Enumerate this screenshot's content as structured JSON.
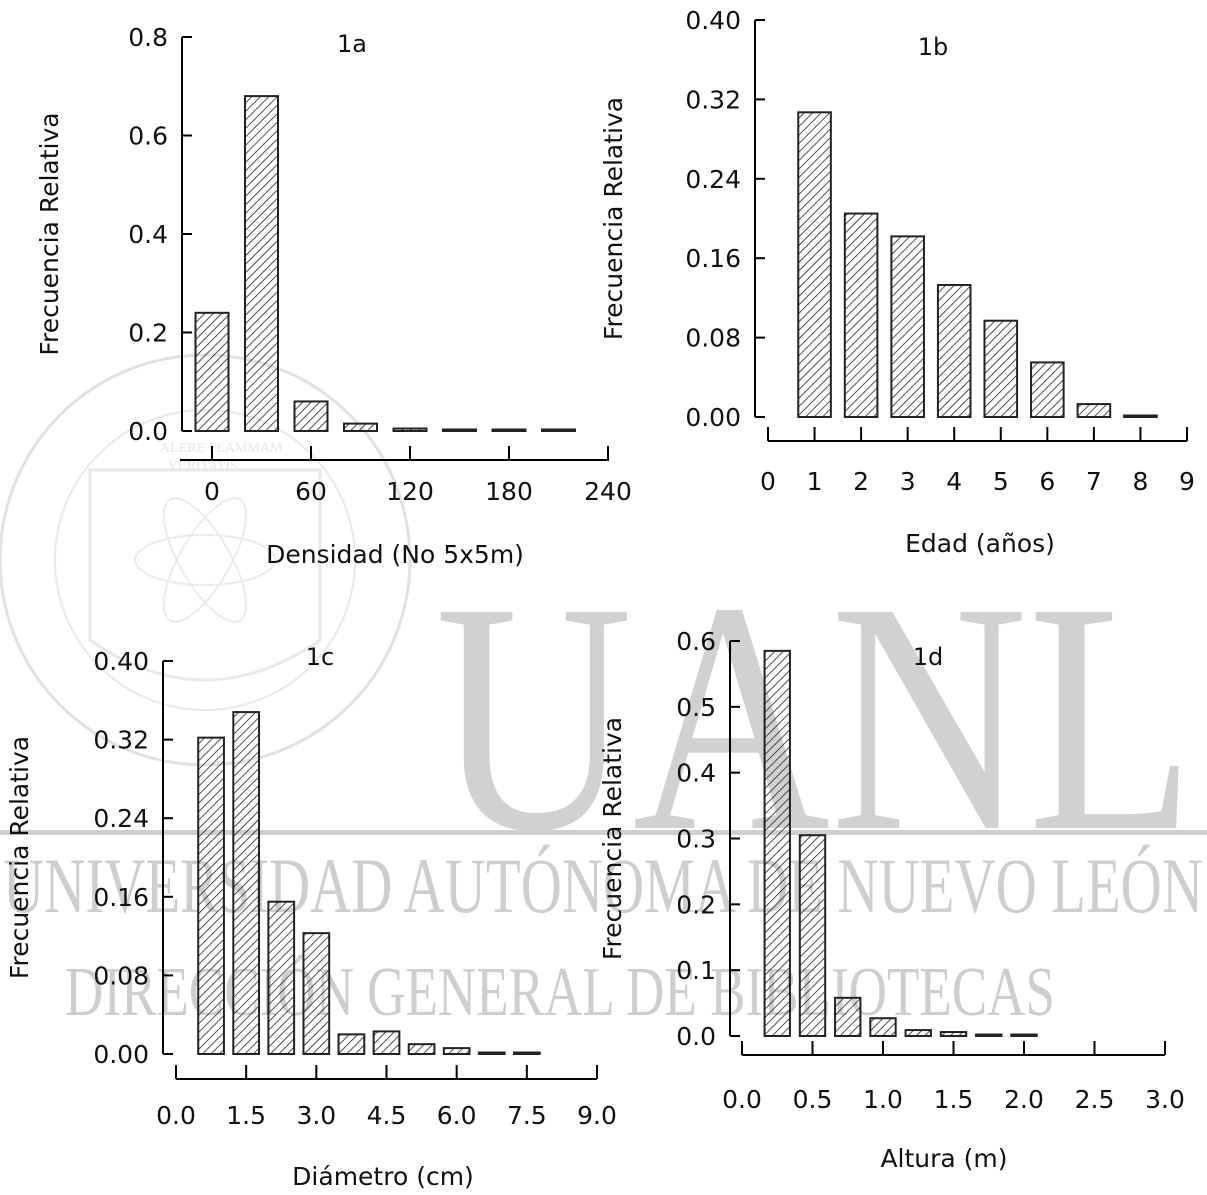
{
  "watermark": {
    "big": "UANL",
    "line1": "UNIVERSIDAD AUTÓNOMA DE NUEVO LEÓN",
    "line2": "DIRECCIÓN GENERAL DE BIBLIOTECAS",
    "seal_arc": "UNIVERSIDAD AUTÓNOMA DE NUEVO LEÓN",
    "seal_motto1": "ALERE FLAMMAM",
    "seal_motto2": "VERITATIS"
  },
  "chart_data": [
    {
      "type": "bar",
      "title": "1a",
      "xlabel": "Densidad (No 5x5m)",
      "ylabel": "Frecuencia Relativa",
      "x_ticks": [
        "0",
        "60",
        "120",
        "180",
        "240"
      ],
      "y_ticks": [
        "0.0",
        "0.2",
        "0.4",
        "0.6",
        "0.8"
      ],
      "xlim": [
        -30,
        240
      ],
      "ylim": [
        0,
        0.8
      ],
      "bin_width": 20,
      "x": [
        0,
        30,
        60,
        90,
        120,
        150,
        180,
        210
      ],
      "values": [
        0.24,
        0.68,
        0.06,
        0.015,
        0.005,
        0.002,
        0.001,
        0.001
      ],
      "fill_color": "#222222"
    },
    {
      "type": "bar",
      "title": "1b",
      "xlabel": "Edad (años)",
      "ylabel": "Frecuencia Relativa",
      "x_ticks": [
        "0",
        "1",
        "2",
        "3",
        "4",
        "5",
        "6",
        "7",
        "8",
        "9"
      ],
      "y_ticks": [
        "0.00",
        "0.08",
        "0.16",
        "0.24",
        "0.32",
        "0.40"
      ],
      "xlim": [
        0,
        9
      ],
      "ylim": [
        0,
        0.4
      ],
      "bin_width": 0.7,
      "x": [
        1,
        2,
        3,
        4,
        5,
        6,
        7,
        8
      ],
      "values": [
        0.307,
        0.205,
        0.182,
        0.133,
        0.097,
        0.055,
        0.013,
        0.001
      ],
      "fill_color": "#222222"
    },
    {
      "type": "bar",
      "title": "1c",
      "xlabel": "Diámetro (cm)",
      "ylabel": "Frecuencia Relativa",
      "x_ticks": [
        "0.0",
        "1.5",
        "3.0",
        "4.5",
        "6.0",
        "7.5",
        "9.0"
      ],
      "y_ticks": [
        "0.00",
        "0.08",
        "0.16",
        "0.24",
        "0.32",
        "0.40"
      ],
      "xlim": [
        0,
        9
      ],
      "ylim": [
        0,
        0.4
      ],
      "bin_width": 0.55,
      "x": [
        0.75,
        1.5,
        2.25,
        3.0,
        3.75,
        4.5,
        5.25,
        6.0,
        6.75,
        7.5
      ],
      "values": [
        0.322,
        0.348,
        0.155,
        0.123,
        0.02,
        0.023,
        0.01,
        0.006,
        0.001,
        0.001
      ],
      "fill_color": "#222222"
    },
    {
      "type": "bar",
      "title": "1d",
      "xlabel": "Altura (m)",
      "ylabel": "Frecuencia Relativa",
      "x_ticks": [
        "0.0",
        "0.5",
        "1.0",
        "1.5",
        "2.0",
        "2.5",
        "3.0"
      ],
      "y_ticks": [
        "0.0",
        "0.1",
        "0.2",
        "0.3",
        "0.4",
        "0.5",
        "0.6"
      ],
      "xlim": [
        0,
        3
      ],
      "ylim": [
        0,
        0.6
      ],
      "bin_width": 0.18,
      "x": [
        0.25,
        0.5,
        0.75,
        1.0,
        1.25,
        1.5,
        1.75,
        2.0
      ],
      "values": [
        0.585,
        0.305,
        0.058,
        0.027,
        0.009,
        0.006,
        0.002,
        0.001
      ],
      "fill_color": "#222222"
    }
  ]
}
